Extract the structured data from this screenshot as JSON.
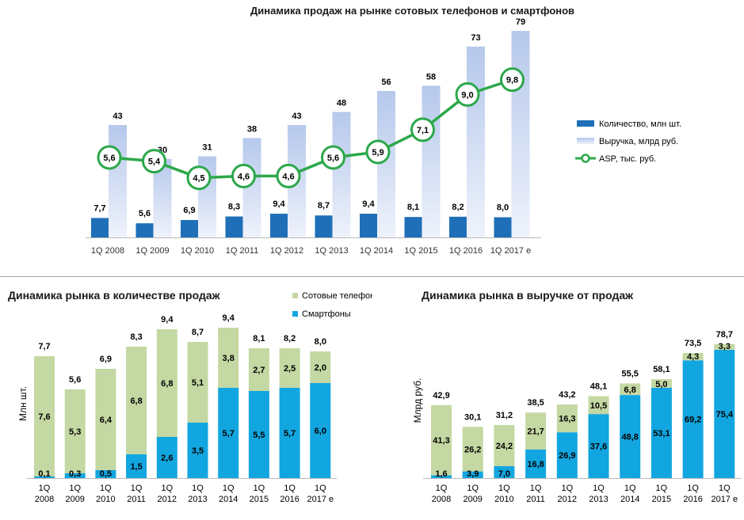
{
  "charts_meta": {
    "top_title": "Динамика продаж на рынке сотовых телефонов и смартфонов",
    "bl_title": "Динамика рынка в количестве продаж",
    "br_title": "Динамика рынка в выручке от продаж"
  },
  "colors": {
    "quantity_bar": "#1f6fb8",
    "revenue_bar": "#c4d2ee",
    "asp_line": "#2ca84a",
    "phones": "#c4d8a3",
    "smartphones": "#12a6e0"
  },
  "chart_data": [
    {
      "type": "bar",
      "title": "Динамика продаж на рынке сотовых телефонов и смартфонов",
      "categories": [
        "1Q 2008",
        "1Q 2009",
        "1Q 2010",
        "1Q 2011",
        "1Q 2012",
        "1Q 2013",
        "1Q 2014",
        "1Q 2015",
        "1Q 2016",
        "1Q 2017 e"
      ],
      "series": [
        {
          "name": "Количество, млн шт.",
          "type": "bar",
          "values": [
            7.7,
            5.6,
            6.9,
            8.3,
            9.4,
            8.7,
            9.4,
            8.1,
            8.2,
            8.0
          ],
          "labels": [
            "7,7",
            "5,6",
            "6,9",
            "8,3",
            "9,4",
            "8,7",
            "9,4",
            "8,1",
            "8,2",
            "8,0"
          ]
        },
        {
          "name": "Выручка, млрд руб.",
          "type": "bar",
          "values": [
            43,
            30,
            31,
            38,
            43,
            48,
            56,
            58,
            73,
            79
          ],
          "labels": [
            "43",
            "30",
            "31",
            "38",
            "43",
            "48",
            "56",
            "58",
            "73",
            "79"
          ]
        },
        {
          "name": "ASP, тыс. руб.",
          "type": "line",
          "values": [
            5.6,
            5.4,
            4.5,
            4.6,
            4.6,
            5.6,
            5.9,
            7.1,
            9.0,
            9.8
          ],
          "labels": [
            "5,6",
            "5,4",
            "4,5",
            "4,6",
            "4,6",
            "5,6",
            "5,9",
            "7,1",
            "9,0",
            "9,8"
          ]
        }
      ],
      "legend": "right",
      "grid": false
    },
    {
      "type": "bar",
      "stacked": true,
      "title": "Динамика рынка в количестве продаж",
      "ylabel": "Млн шт.",
      "categories": [
        [
          "1Q",
          "2008"
        ],
        [
          "1Q",
          "2009"
        ],
        [
          "1Q",
          "2010"
        ],
        [
          "1Q",
          "2011"
        ],
        [
          "1Q",
          "2012"
        ],
        [
          "1Q",
          "2013"
        ],
        [
          "1Q",
          "2014"
        ],
        [
          "1Q",
          "2015"
        ],
        [
          "1Q",
          "2016"
        ],
        [
          "1Q",
          "2017 e"
        ]
      ],
      "totals": [
        "7,7",
        "5,6",
        "6,9",
        "8,3",
        "9,4",
        "8,7",
        "9,4",
        "8,1",
        "8,2",
        "8,0"
      ],
      "series": [
        {
          "name": "Смартфоны",
          "values": [
            0.1,
            0.3,
            0.5,
            1.5,
            2.6,
            3.5,
            5.7,
            5.5,
            5.7,
            6.0
          ],
          "labels": [
            "0,1",
            "0,3",
            "0,5",
            "1,5",
            "2,6",
            "3,5",
            "5,7",
            "5,5",
            "5,7",
            "6,0"
          ]
        },
        {
          "name": "Сотовые телефоны",
          "values": [
            7.6,
            5.3,
            6.4,
            6.8,
            6.8,
            5.1,
            3.8,
            2.7,
            2.5,
            2.0
          ],
          "labels": [
            "7,6",
            "5,3",
            "6,4",
            "6,8",
            "6,8",
            "5,1",
            "3,8",
            "2,7",
            "2,5",
            "2,0"
          ]
        }
      ],
      "legend_labels": [
        "Сотовые телефоны",
        "Смартфоны"
      ],
      "legend": "top-right",
      "grid": false
    },
    {
      "type": "bar",
      "stacked": true,
      "title": "Динамика рынка в выручке от продаж",
      "ylabel": "Млрд руб.",
      "categories": [
        [
          "1Q",
          "2008"
        ],
        [
          "1Q",
          "2009"
        ],
        [
          "1Q",
          "2010"
        ],
        [
          "1Q",
          "2011"
        ],
        [
          "1Q",
          "2012"
        ],
        [
          "1Q",
          "2013"
        ],
        [
          "1Q",
          "2014"
        ],
        [
          "1Q",
          "2015"
        ],
        [
          "1Q",
          "2016"
        ],
        [
          "1Q",
          "2017 e"
        ]
      ],
      "totals": [
        "42,9",
        "30,1",
        "31,2",
        "38,5",
        "43,2",
        "48,1",
        "55,5",
        "58,1",
        "73,5",
        "78,7"
      ],
      "series": [
        {
          "name": "Смартфоны",
          "values": [
            1.6,
            3.9,
            7.0,
            16.8,
            26.9,
            37.6,
            48.8,
            53.1,
            69.2,
            75.4
          ],
          "labels": [
            "1,6",
            "3,9",
            "7,0",
            "16,8",
            "26,9",
            "37,6",
            "48,8",
            "53,1",
            "69,2",
            "75,4"
          ]
        },
        {
          "name": "Сотовые телефоны",
          "values": [
            41.3,
            26.2,
            24.2,
            21.7,
            16.3,
            10.5,
            6.8,
            5.0,
            4.3,
            3.3
          ],
          "labels": [
            "41,3",
            "26,2",
            "24,2",
            "21,7",
            "16,3",
            "10,5",
            "6,8",
            "5,0",
            "4,3",
            "3,3"
          ]
        }
      ],
      "grid": false
    }
  ]
}
